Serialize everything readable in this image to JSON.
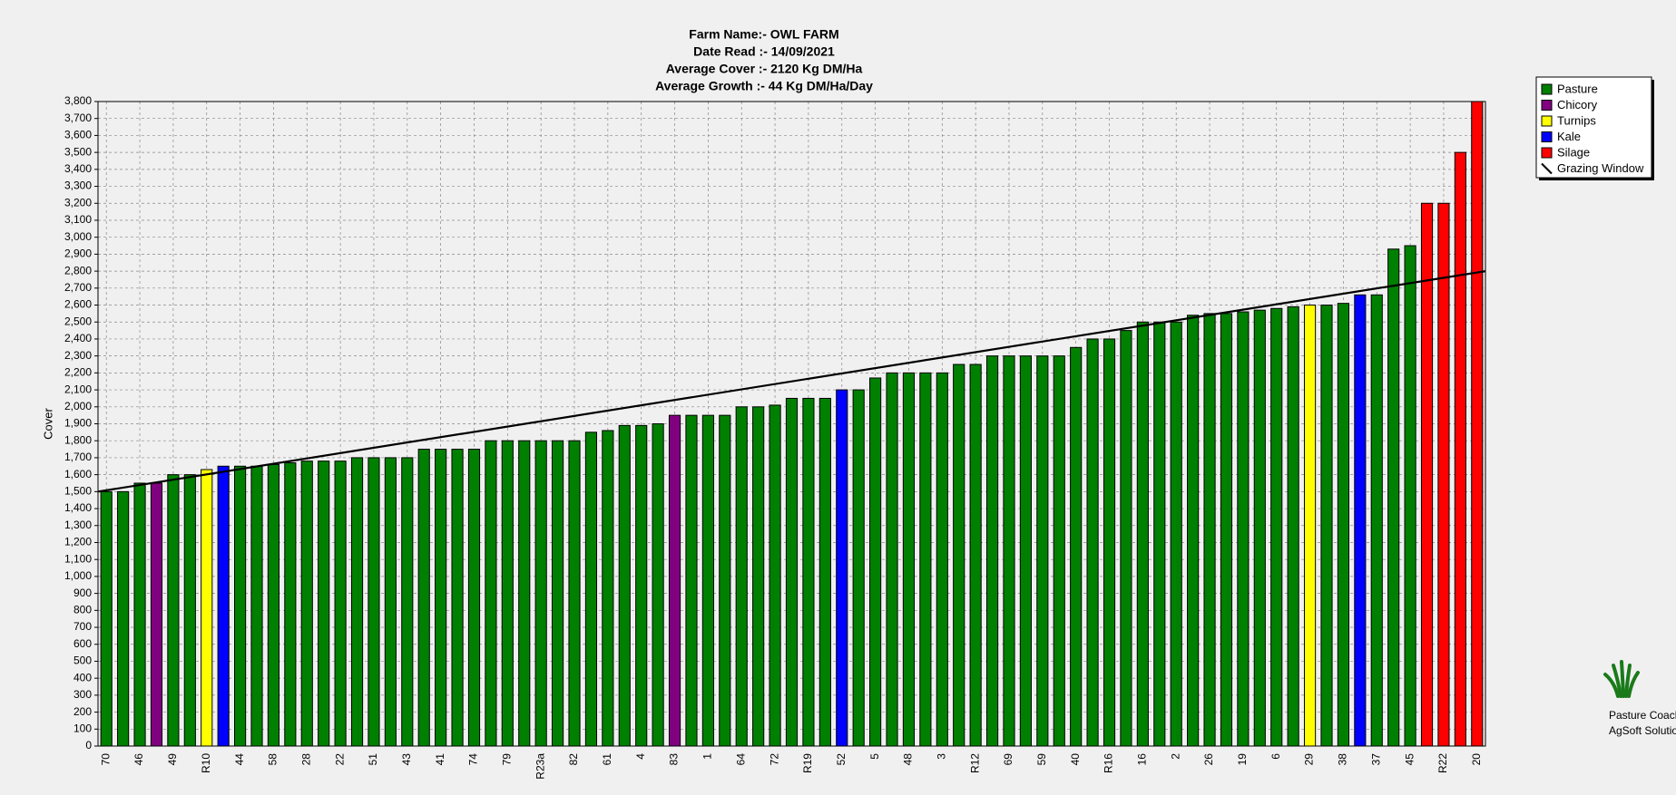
{
  "chart_data": {
    "type": "bar",
    "title_lines": [
      "Farm Name:- OWL FARM",
      "Date Read :- 14/09/2021",
      "Average Cover :- 2120 Kg DM/Ha",
      "Average Growth :- 44 Kg DM/Ha/Day"
    ],
    "y_label": "Cover",
    "categories": [
      "70",
      null,
      "46",
      null,
      "49",
      null,
      "R10",
      null,
      "44",
      null,
      "58",
      null,
      "28",
      null,
      "22",
      null,
      "51",
      null,
      "43",
      null,
      "41",
      null,
      "74",
      null,
      "79",
      null,
      "R23a",
      null,
      "82",
      null,
      "61",
      null,
      "4",
      null,
      "83",
      null,
      "1",
      null,
      "64",
      null,
      "72",
      null,
      "R19",
      null,
      "52",
      null,
      "5",
      null,
      "48",
      null,
      "3",
      null,
      "R12",
      null,
      "69",
      null,
      "59",
      null,
      "40",
      null,
      "R16",
      null,
      "16",
      null,
      "2",
      null,
      "26",
      null,
      "19",
      null,
      "6",
      null,
      "29",
      null,
      "38",
      null,
      "37",
      null,
      "45",
      null,
      "R22",
      null,
      "20"
    ],
    "values": [
      1500,
      1500,
      1550,
      1550,
      1600,
      1600,
      1630,
      1650,
      1650,
      1650,
      1660,
      1670,
      1680,
      1680,
      1680,
      1700,
      1700,
      1700,
      1700,
      1750,
      1750,
      1750,
      1750,
      1800,
      1800,
      1800,
      1800,
      1800,
      1800,
      1850,
      1860,
      1890,
      1890,
      1900,
      1950,
      1950,
      1950,
      1950,
      2000,
      2000,
      2010,
      2050,
      2050,
      2050,
      2100,
      2100,
      2170,
      2200,
      2200,
      2200,
      2200,
      2250,
      2250,
      2300,
      2300,
      2300,
      2300,
      2300,
      2350,
      2400,
      2400,
      2450,
      2500,
      2500,
      2500,
      2540,
      2550,
      2550,
      2560,
      2570,
      2580,
      2590,
      2600,
      2600,
      2610,
      2660,
      2660,
      2930,
      2950,
      3200,
      3200,
      3500,
      3800
    ],
    "bar_colors": [
      "#008000",
      "#008000",
      "#008000",
      "#800080",
      "#008000",
      "#008000",
      "#ffff00",
      "#0000ff",
      "#008000",
      "#008000",
      "#008000",
      "#008000",
      "#008000",
      "#008000",
      "#008000",
      "#008000",
      "#008000",
      "#008000",
      "#008000",
      "#008000",
      "#008000",
      "#008000",
      "#008000",
      "#008000",
      "#008000",
      "#008000",
      "#008000",
      "#008000",
      "#008000",
      "#008000",
      "#008000",
      "#008000",
      "#008000",
      "#008000",
      "#800080",
      "#008000",
      "#008000",
      "#008000",
      "#008000",
      "#008000",
      "#008000",
      "#008000",
      "#008000",
      "#008000",
      "#0000ff",
      "#008000",
      "#008000",
      "#008000",
      "#008000",
      "#008000",
      "#008000",
      "#008000",
      "#008000",
      "#008000",
      "#008000",
      "#008000",
      "#008000",
      "#008000",
      "#008000",
      "#008000",
      "#008000",
      "#008000",
      "#008000",
      "#008000",
      "#008000",
      "#008000",
      "#008000",
      "#008000",
      "#008000",
      "#008000",
      "#008000",
      "#008000",
      "#ffff00",
      "#008000",
      "#008000",
      "#0000ff",
      "#008000",
      "#008000",
      "#008000",
      "#ff0000",
      "#ff0000",
      "#ff0000",
      "#ff0000"
    ],
    "legend": [
      {
        "name": "Pasture",
        "color": "#008000"
      },
      {
        "name": "Chicory",
        "color": "#800080"
      },
      {
        "name": "Turnips",
        "color": "#ffff00"
      },
      {
        "name": "Kale",
        "color": "#0000ff"
      },
      {
        "name": "Silage",
        "color": "#ff0000"
      }
    ],
    "grazing_window": {
      "name": "Grazing Window",
      "color": "#000000",
      "start": 1500,
      "end": 2800
    },
    "ylim": [
      0,
      3800
    ],
    "yticks": [
      0,
      100,
      200,
      300,
      400,
      500,
      600,
      700,
      800,
      900,
      {
        "value": 1000,
        "label": "1,000"
      },
      {
        "value": 1100,
        "label": "1,100"
      },
      {
        "value": 1200,
        "label": "1,200"
      },
      {
        "value": 1300,
        "label": "1,300"
      },
      {
        "value": 1400,
        "label": "1,400"
      },
      {
        "value": 1500,
        "label": "1,500"
      },
      {
        "value": 1600,
        "label": "1,600"
      },
      {
        "value": 1700,
        "label": "1,700"
      },
      {
        "value": 1800,
        "label": "1,800"
      },
      {
        "value": 1900,
        "label": "1,900"
      },
      {
        "value": 2000,
        "label": "2,000"
      },
      {
        "value": 2100,
        "label": "2,100"
      },
      {
        "value": 2200,
        "label": "2,200"
      },
      {
        "value": 2300,
        "label": "2,300"
      },
      {
        "value": 2400,
        "label": "2,400"
      },
      {
        "value": 2500,
        "label": "2,500"
      },
      {
        "value": 2600,
        "label": "2,600"
      },
      {
        "value": 2700,
        "label": "2,700"
      },
      {
        "value": 2800,
        "label": "2,800"
      },
      {
        "value": 2900,
        "label": "2,900"
      },
      {
        "value": 3000,
        "label": "3,000"
      },
      {
        "value": 3100,
        "label": "3,100"
      },
      {
        "value": 3200,
        "label": "3,200"
      },
      {
        "value": 3300,
        "label": "3,300"
      },
      {
        "value": 3400,
        "label": "3,400"
      },
      {
        "value": 3500,
        "label": "3,500"
      },
      {
        "value": 3600,
        "label": "3,600"
      },
      {
        "value": 3700,
        "label": "3,700"
      },
      {
        "value": 3800,
        "label": "3,800"
      }
    ],
    "grid": true,
    "branding": [
      "Pasture Coach",
      "AgSoft Solutions"
    ]
  }
}
